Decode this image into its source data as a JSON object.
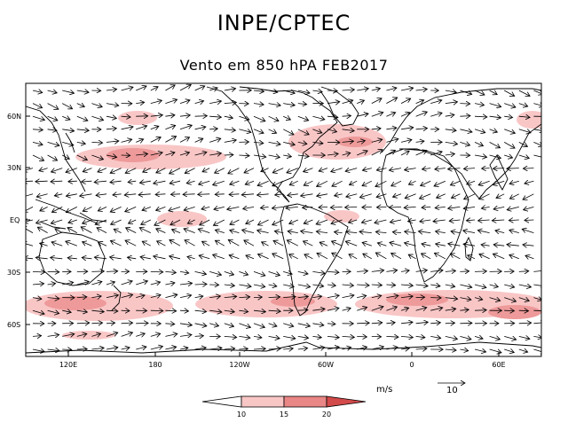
{
  "header": {
    "title": "INPE/CPTEC",
    "subtitle": "Vento em 850 hPA FEB2017"
  },
  "axes": {
    "lat_labels": [
      "60N",
      "30N",
      "EQ",
      "30S",
      "60S"
    ],
    "lon_labels": [
      "120E",
      "180",
      "120W",
      "60W",
      "0",
      "60E"
    ]
  },
  "legend": {
    "units_label": "m/s",
    "reference_value": "10",
    "thresholds": [
      "10",
      "15",
      "20"
    ],
    "colors": [
      "#ffffff",
      "#f9c6c6",
      "#e98686",
      "#d24a4a"
    ]
  },
  "colors": {
    "shade_light": "#f9c6c6",
    "shade_dark": "#ee9a9a",
    "coast": "#000000"
  }
}
